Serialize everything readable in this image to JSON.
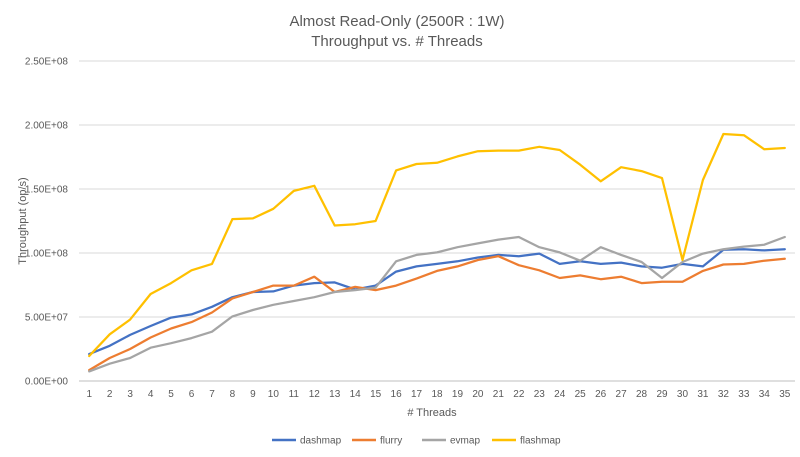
{
  "chart_data": {
    "type": "line",
    "title": "Almost Read-Only (2500R : 1W)",
    "subtitle": "Throughput vs. # Threads",
    "xlabel": "# Threads",
    "ylabel": "Throughput (op/s)",
    "ylim": [
      0,
      250000000
    ],
    "yticks": [
      0,
      50000000,
      100000000,
      150000000,
      200000000,
      250000000
    ],
    "ytick_labels": [
      "0.00E+00",
      "5.00E+07",
      "1.00E+08",
      "1.50E+08",
      "2.00E+08",
      "2.50E+08"
    ],
    "x": [
      1,
      2,
      3,
      4,
      5,
      6,
      7,
      8,
      9,
      10,
      11,
      12,
      13,
      14,
      15,
      16,
      17,
      18,
      19,
      20,
      21,
      22,
      23,
      24,
      25,
      26,
      27,
      28,
      29,
      30,
      31,
      32,
      33,
      34,
      35
    ],
    "grid": true,
    "legend": "bottom",
    "series": [
      {
        "name": "dashmap",
        "color": "#4472c4",
        "values": [
          21000000,
          27500000,
          36000000,
          43000000,
          49500000,
          52000000,
          58000000,
          65500000,
          69500000,
          70000000,
          74500000,
          76500000,
          77000000,
          71500000,
          74500000,
          85500000,
          89500000,
          91500000,
          93500000,
          96500000,
          98500000,
          97500000,
          99500000,
          91500000,
          93500000,
          91500000,
          92500000,
          89500000,
          88500000,
          91500000,
          89500000,
          102500000,
          103000000,
          102000000,
          103000000
        ]
      },
      {
        "name": "flurry",
        "color": "#ed7d31",
        "values": [
          8500000,
          18000000,
          25000000,
          34000000,
          41000000,
          46000000,
          53500000,
          64500000,
          69500000,
          74500000,
          74500000,
          81500000,
          69500000,
          73500000,
          71000000,
          74500000,
          80000000,
          86000000,
          89500000,
          94500000,
          97500000,
          90500000,
          86500000,
          80500000,
          82500000,
          79500000,
          81500000,
          76500000,
          77500000,
          77500000,
          86000000,
          91000000,
          91500000,
          94000000,
          95500000
        ]
      },
      {
        "name": "evmap",
        "color": "#a5a5a5",
        "values": [
          7500000,
          13500000,
          18000000,
          26000000,
          29500000,
          33500000,
          38500000,
          50500000,
          55500000,
          59500000,
          62500000,
          65500000,
          69500000,
          71000000,
          73000000,
          93500000,
          98500000,
          100500000,
          104500000,
          107500000,
          110500000,
          112500000,
          104500000,
          100500000,
          94000000,
          104500000,
          98500000,
          93000000,
          80500000,
          93000000,
          99500000,
          103000000,
          105000000,
          106500000,
          112500000
        ]
      },
      {
        "name": "flashmap",
        "color": "#ffc000",
        "values": [
          19500000,
          36500000,
          48000000,
          68000000,
          76500000,
          86500000,
          91500000,
          126500000,
          127000000,
          134500000,
          148500000,
          152500000,
          121500000,
          122500000,
          125000000,
          164500000,
          169500000,
          170500000,
          175500000,
          179500000,
          180000000,
          180000000,
          183000000,
          180500000,
          169000000,
          156000000,
          167000000,
          164000000,
          158500000,
          94500000,
          157000000,
          193000000,
          192000000,
          181000000,
          182000000
        ]
      }
    ]
  }
}
